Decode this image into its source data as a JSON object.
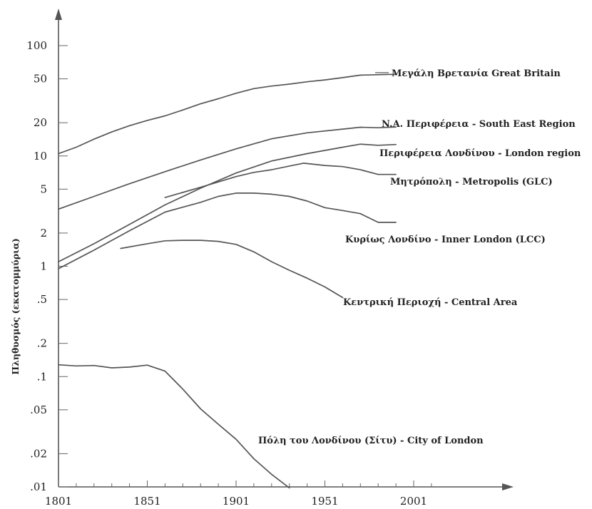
{
  "chart_data": {
    "type": "line",
    "title": "",
    "xlabel": "",
    "ylabel": "Πληθυσμός (εκατομμύρια)",
    "y_scale": "log",
    "ylim": [
      0.01,
      150
    ],
    "xlim": [
      1801,
      2031
    ],
    "grid": false,
    "legend": "inline labels at line ends",
    "x_ticks": [
      1801,
      1851,
      1901,
      1951,
      2001
    ],
    "y_ticks": [
      {
        "value": 0.01,
        "label": ".01"
      },
      {
        "value": 0.02,
        "label": ".02"
      },
      {
        "value": 0.05,
        "label": ".05"
      },
      {
        "value": 0.1,
        "label": ".1"
      },
      {
        "value": 0.2,
        "label": ".2"
      },
      {
        "value": 0.5,
        "label": ".5"
      },
      {
        "value": 1,
        "label": "1"
      },
      {
        "value": 2,
        "label": "2"
      },
      {
        "value": 5,
        "label": "5"
      },
      {
        "value": 10,
        "label": "10"
      },
      {
        "value": 20,
        "label": "20"
      },
      {
        "value": 50,
        "label": "50"
      },
      {
        "value": 100,
        "label": "100"
      }
    ],
    "series": [
      {
        "name": "Μεγάλη Βρετανία   Great Britain",
        "x": [
          1801,
          1811,
          1821,
          1831,
          1841,
          1851,
          1861,
          1871,
          1881,
          1891,
          1901,
          1911,
          1921,
          1931,
          1941,
          1951,
          1961,
          1971,
          1981,
          1991
        ],
        "y": [
          10.5,
          12,
          14.2,
          16.5,
          18.8,
          21,
          23.1,
          26.1,
          29.7,
          33,
          37,
          40.8,
          43,
          44.8,
          47,
          48.9,
          51.3,
          54,
          54.5,
          55
        ]
      },
      {
        "name": "N.A. Περιφέρεια - South East Region",
        "x": [
          1801,
          1821,
          1841,
          1861,
          1881,
          1901,
          1921,
          1941,
          1961,
          1971,
          1981,
          1991
        ],
        "y": [
          3.3,
          4.3,
          5.6,
          7.2,
          9.2,
          11.6,
          14.3,
          16.2,
          17.5,
          18.2,
          18,
          18.3
        ]
      },
      {
        "name": "Περιφέρεια Λονδίνου - London region",
        "x": [
          1801,
          1821,
          1841,
          1861,
          1881,
          1901,
          1921,
          1941,
          1961,
          1971,
          1981,
          1991
        ],
        "y": [
          1.1,
          1.6,
          2.4,
          3.6,
          5.1,
          7,
          9,
          10.5,
          12,
          12.8,
          12.5,
          12.7
        ]
      },
      {
        "name": "Μητρόπολη - Metropolis (GLC)",
        "x": [
          1861,
          1881,
          1901,
          1911,
          1921,
          1931,
          1939,
          1951,
          1961,
          1971,
          1981,
          1991
        ],
        "y": [
          4.2,
          5.2,
          6.5,
          7.1,
          7.5,
          8.1,
          8.6,
          8.2,
          8,
          7.5,
          6.8,
          6.8
        ]
      },
      {
        "name": "Κυρίως Λονδίνο - Inner London (LCC)",
        "x": [
          1801,
          1821,
          1841,
          1861,
          1881,
          1891,
          1901,
          1911,
          1921,
          1931,
          1941,
          1951,
          1961,
          1971,
          1981,
          1991
        ],
        "y": [
          0.95,
          1.4,
          2.1,
          3.1,
          3.8,
          4.3,
          4.6,
          4.6,
          4.5,
          4.3,
          3.9,
          3.4,
          3.2,
          3.0,
          2.5,
          2.5
        ]
      },
      {
        "name": "Κεντρική Περιοχή - Central Area",
        "x": [
          1836,
          1851,
          1861,
          1871,
          1881,
          1891,
          1901,
          1911,
          1921,
          1931,
          1941,
          1951,
          1961
        ],
        "y": [
          1.45,
          1.6,
          1.7,
          1.72,
          1.72,
          1.68,
          1.58,
          1.35,
          1.1,
          0.92,
          0.78,
          0.65,
          0.52
        ]
      },
      {
        "name": "Πόλη του Λονδίνου (Σίτυ) - City of London",
        "x": [
          1801,
          1811,
          1821,
          1831,
          1841,
          1851,
          1861,
          1871,
          1881,
          1891,
          1901,
          1911,
          1921,
          1931
        ],
        "y": [
          0.128,
          0.125,
          0.126,
          0.12,
          0.122,
          0.127,
          0.112,
          0.077,
          0.051,
          0.037,
          0.027,
          0.018,
          0.013,
          0.0098
        ]
      }
    ]
  }
}
